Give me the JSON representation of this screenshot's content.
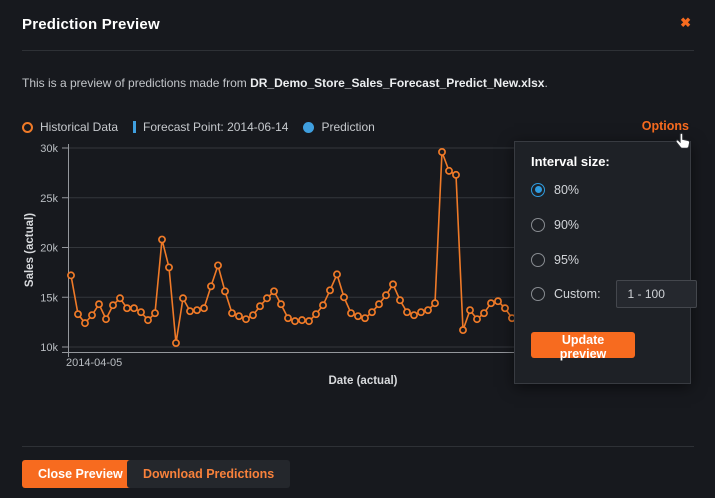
{
  "modal": {
    "title": "Prediction Preview",
    "close_icon": "✖",
    "intro_prefix": "This is a preview of predictions made from ",
    "intro_file": "DR_Demo_Store_Sales_Forecast_Predict_New.xlsx",
    "intro_suffix": "."
  },
  "legend": {
    "historical": "Historical Data",
    "forecast_point": "Forecast Point: 2014-06-14",
    "prediction": "Prediction"
  },
  "options_label": "Options",
  "options_panel": {
    "heading": "Interval size:",
    "radios": [
      {
        "label": "80%",
        "selected": true
      },
      {
        "label": "90%",
        "selected": false
      },
      {
        "label": "95%",
        "selected": false
      },
      {
        "label": "Custom:",
        "selected": false
      }
    ],
    "custom_input_value": "1 - 100",
    "update_button": "Update preview"
  },
  "footer": {
    "close_button": "Close Preview",
    "download_button": "Download Predictions"
  },
  "colors": {
    "accent_orange": "#f76b1f",
    "series_orange": "#ef7a28",
    "prediction_blue": "#3f9fdf",
    "background": "#17191e",
    "panel": "#1e2126",
    "gridline": "#34373c",
    "axis": "#94979c",
    "tick_text": "#b9bdc2"
  },
  "chart_data": {
    "type": "line",
    "title": "",
    "xlabel": "Date (actual)",
    "ylabel": "Sales (actual)",
    "x_first_tick_label": "2014-04-05",
    "ytick_values_k": [
      10,
      15,
      20,
      25,
      30
    ],
    "ytick_labels": [
      "10k",
      "15k",
      "20k",
      "25k",
      "30k"
    ],
    "ylim_k": [
      9.5,
      30.2
    ],
    "grid": true,
    "legend_entries": [
      "Historical Data",
      "Forecast Point: 2014-06-14",
      "Prediction"
    ],
    "series": [
      {
        "name": "Historical Data",
        "color": "#ef7a28",
        "values_k": [
          17.2,
          13.3,
          12.4,
          13.2,
          14.3,
          12.8,
          14.2,
          14.9,
          13.9,
          13.9,
          13.5,
          12.7,
          13.4,
          20.8,
          18.0,
          10.4,
          14.9,
          13.6,
          13.7,
          13.9,
          16.1,
          18.2,
          15.6,
          13.4,
          13.1,
          12.8,
          13.2,
          14.1,
          14.9,
          15.6,
          14.3,
          12.9,
          12.6,
          12.7,
          12.6,
          13.3,
          14.2,
          15.7,
          17.3,
          15.0,
          13.4,
          13.1,
          12.9,
          13.5,
          14.3,
          15.2,
          16.3,
          14.7,
          13.5,
          13.2,
          13.5,
          13.7,
          14.4,
          29.6,
          27.7,
          27.3,
          11.7,
          13.7,
          12.8,
          13.4,
          14.4,
          14.6,
          13.9,
          12.9
        ]
      }
    ]
  }
}
